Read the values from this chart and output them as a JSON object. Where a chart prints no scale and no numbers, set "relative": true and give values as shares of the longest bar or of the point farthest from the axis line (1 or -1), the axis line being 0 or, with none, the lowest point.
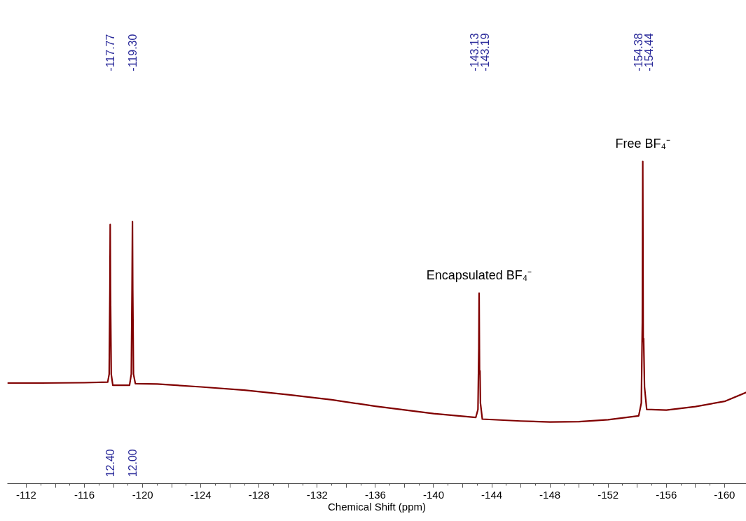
{
  "chart_data": {
    "type": "line",
    "relative": true,
    "xlabel": "Chemical Shift (ppm)",
    "x": [
      -110.7,
      -113,
      -116,
      -117.6,
      -117.7,
      -117.75,
      -117.77,
      -117.79,
      -117.84,
      -117.95,
      -119.1,
      -119.22,
      -119.27,
      -119.3,
      -119.32,
      -119.37,
      -119.5,
      -121,
      -124,
      -127,
      -130,
      -133,
      -136,
      -140,
      -142.9,
      -143.05,
      -143.11,
      -143.13,
      -143.16,
      -143.19,
      -143.22,
      -143.35,
      -146,
      -148,
      -150,
      -152,
      -154.1,
      -154.28,
      -154.35,
      -154.38,
      -154.41,
      -154.44,
      -154.5,
      -154.65,
      -156,
      -158,
      -160,
      -161.5
    ],
    "series": [
      {
        "color": "#800000",
        "values": [
          0.312,
          0.312,
          0.313,
          0.315,
          0.34,
          0.6,
          0.804,
          0.6,
          0.34,
          0.305,
          0.305,
          0.34,
          0.6,
          0.813,
          0.6,
          0.34,
          0.31,
          0.309,
          0.3,
          0.29,
          0.276,
          0.26,
          0.24,
          0.217,
          0.205,
          0.23,
          0.42,
          0.591,
          0.34,
          0.35,
          0.25,
          0.2,
          0.194,
          0.191,
          0.192,
          0.198,
          0.21,
          0.25,
          0.5,
          1.0,
          0.44,
          0.45,
          0.3,
          0.23,
          0.228,
          0.239,
          0.255,
          0.283
        ]
      }
    ],
    "xlim": [
      -110.7,
      -161.5
    ],
    "xticks": [
      -112,
      {
        "value": -114,
        "label": null
      },
      -116,
      {
        "value": -118,
        "label": null
      },
      -120,
      {
        "value": -122,
        "label": null
      },
      -124,
      {
        "value": -126,
        "label": null
      },
      -128,
      {
        "value": -130,
        "label": null
      },
      -132,
      {
        "value": -134,
        "label": null
      },
      -136,
      {
        "value": -138,
        "label": null
      },
      -140,
      {
        "value": -142,
        "label": null
      },
      -144,
      {
        "value": -146,
        "label": null
      },
      -148,
      {
        "value": -150,
        "label": null
      },
      -152,
      {
        "value": -154,
        "label": null
      },
      -156,
      {
        "value": -158,
        "label": null
      },
      -160
    ],
    "annotations": [
      "-117.77",
      "-119.30",
      "-143.13",
      "-143.19",
      "-154.38",
      "-154.44",
      "12.40",
      "12.00",
      {
        "text": "Encapsulated BF₄⁻",
        "x": -143.13,
        "y": 0.591
      },
      {
        "text": "Free BF₄⁻",
        "x": -154.38,
        "y": 1.0
      }
    ],
    "grid": false
  }
}
